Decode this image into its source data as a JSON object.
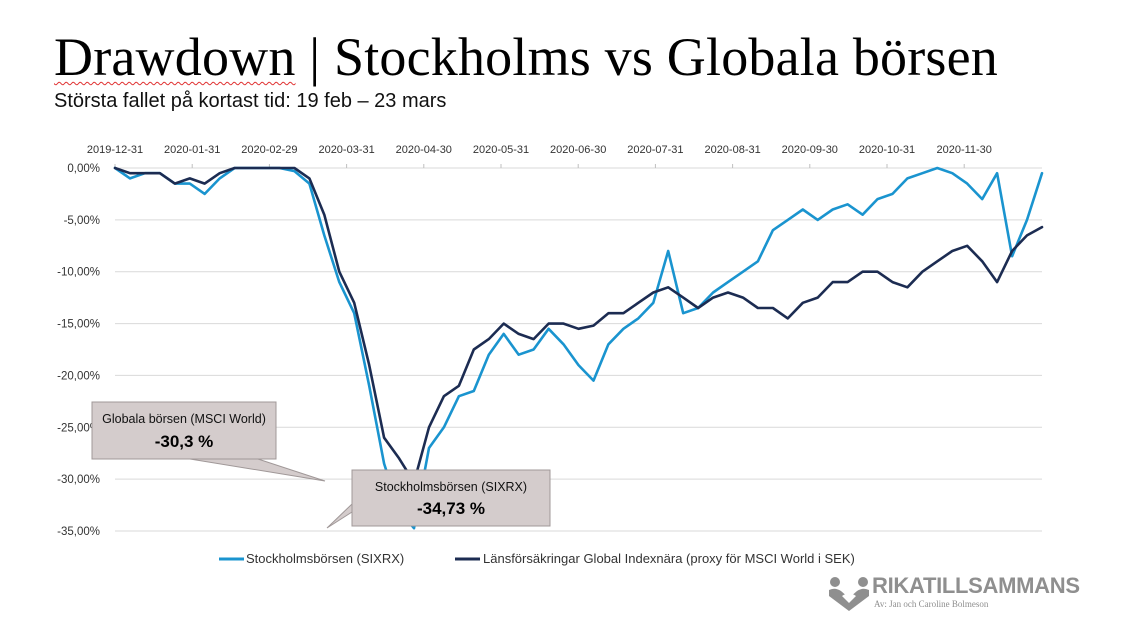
{
  "header": {
    "title_word": "Drawdown",
    "title_rest": " | Stockholms vs Globala börsen",
    "subtitle": "Största fallet på kortast tid: 19 feb – 23 mars"
  },
  "chart_data": {
    "type": "line",
    "title": "Drawdown | Stockholms vs Globala börsen",
    "subtitle": "Största fallet på kortast tid: 19 feb – 23 mars",
    "xlabel": "",
    "ylabel": "",
    "ylim": [
      -35,
      0
    ],
    "yticks": [
      0,
      -5,
      -10,
      -15,
      -20,
      -25,
      -30,
      -35
    ],
    "ytick_labels": [
      "0,00%",
      "-5,00%",
      "-10,00%",
      "-15,00%",
      "-20,00%",
      "-25,00%",
      "-30,00%",
      "-35,00%"
    ],
    "xtick_labels": [
      "2019-12-31",
      "2020-01-31",
      "2020-02-29",
      "2020-03-31",
      "2020-04-30",
      "2020-05-31",
      "2020-06-30",
      "2020-07-31",
      "2020-08-31",
      "2020-09-30",
      "2020-10-31",
      "2020-11-30"
    ],
    "x_axis_position": "top",
    "grid": true,
    "legend_position": "bottom",
    "x": [
      0,
      4,
      8,
      12,
      16,
      20,
      24,
      28,
      32,
      36,
      40,
      44,
      48,
      52,
      56,
      60,
      64,
      68,
      72,
      76,
      80,
      84,
      88,
      92,
      96,
      100,
      104,
      108,
      112,
      116,
      120,
      124,
      128,
      132,
      136,
      140,
      144,
      148,
      152,
      156,
      160,
      164,
      168,
      172,
      176,
      180,
      184,
      188,
      192,
      196,
      200,
      204,
      208,
      212,
      216,
      220,
      224,
      228,
      232,
      236,
      240,
      244,
      248
    ],
    "series": [
      {
        "name": "Stockholmsbörsen (SIXRX)",
        "color": "#1a94cf",
        "values": [
          0,
          -1,
          -0.5,
          -0.5,
          -1.5,
          -1.5,
          -2.5,
          -1,
          0,
          0,
          0,
          0,
          -0.3,
          -1.5,
          -6.5,
          -11,
          -14,
          -21,
          -28.5,
          -33,
          -34.73,
          -27,
          -25,
          -22,
          -21.5,
          -18,
          -16,
          -18,
          -17.5,
          -15.5,
          -17,
          -19,
          -20.5,
          -17,
          -15.5,
          -14.5,
          -13,
          -8,
          -14,
          -13.5,
          -12,
          -11,
          -10,
          -9,
          -6,
          -5,
          -4,
          -5,
          -4,
          -3.5,
          -4.5,
          -3,
          -2.5,
          -1,
          -0.5,
          0,
          -0.5,
          -1.5,
          -3,
          -0.5,
          -8.5,
          -5,
          -0.5
        ]
      },
      {
        "name": "Länsförsäkringar Global Indexnära (proxy för MSCI World i SEK)",
        "color": "#1c2c52",
        "values": [
          0,
          -0.5,
          -0.5,
          -0.5,
          -1.5,
          -1,
          -1.5,
          -0.5,
          0,
          0,
          0,
          0,
          0,
          -1,
          -4.5,
          -10,
          -13,
          -19,
          -26,
          -28,
          -30.3,
          -25,
          -22,
          -21,
          -17.5,
          -16.5,
          -15,
          -16,
          -16.5,
          -15,
          -15,
          -15.5,
          -15.2,
          -14,
          -14,
          -13,
          -12,
          -11.5,
          -12.5,
          -13.5,
          -12.5,
          -12,
          -12.5,
          -13.5,
          -13.5,
          -14.5,
          -13,
          -12.5,
          -11,
          -11,
          -10,
          -10,
          -11,
          -11.5,
          -10,
          -9,
          -8,
          -7.5,
          -9,
          -11,
          -8,
          -6.5,
          -5.7
        ]
      }
    ],
    "annotations": [
      {
        "label": "Globala börsen (MSCI World)",
        "value": "-30,3 %"
      },
      {
        "label": "Stockholmsbörsen (SIXRX)",
        "value": "-34,73 %"
      }
    ]
  },
  "logo": {
    "name": "RIKATILLSAMMANS",
    "byline": "Av: Jan och Caroline Bolmeson",
    "color": "#8f8f8f"
  }
}
